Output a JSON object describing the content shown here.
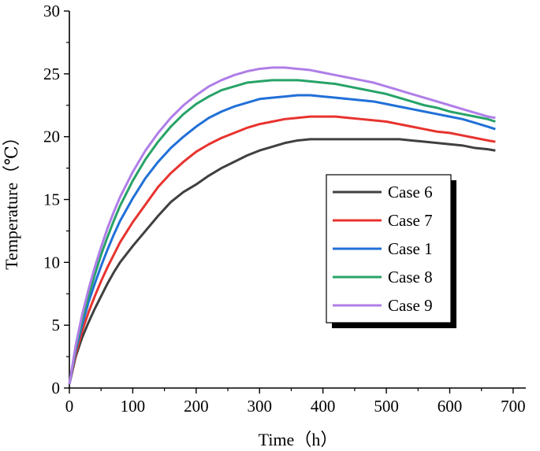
{
  "chart_data": {
    "type": "line",
    "title": "",
    "xlabel": "Time（h）",
    "ylabel": "Temperature（℃）",
    "xlim": [
      0,
      720
    ],
    "ylim": [
      0,
      30
    ],
    "xticks": [
      0,
      100,
      200,
      300,
      400,
      500,
      600,
      700
    ],
    "yticks": [
      0,
      5,
      10,
      15,
      20,
      25,
      30
    ],
    "grid": false,
    "legend_position": "center-right",
    "series": [
      {
        "name": "Case 6",
        "color": "#404040",
        "x": [
          0,
          10,
          20,
          30,
          40,
          50,
          60,
          70,
          80,
          100,
          120,
          140,
          160,
          180,
          200,
          220,
          240,
          260,
          280,
          300,
          320,
          340,
          360,
          380,
          400,
          420,
          440,
          460,
          480,
          500,
          520,
          540,
          560,
          580,
          600,
          620,
          640,
          660,
          672
        ],
        "y": [
          0.3,
          2.5,
          4.0,
          5.2,
          6.3,
          7.3,
          8.3,
          9.2,
          10.0,
          11.3,
          12.5,
          13.7,
          14.8,
          15.6,
          16.2,
          16.9,
          17.5,
          18.0,
          18.5,
          18.9,
          19.2,
          19.5,
          19.7,
          19.8,
          19.8,
          19.8,
          19.8,
          19.8,
          19.8,
          19.8,
          19.8,
          19.7,
          19.6,
          19.5,
          19.4,
          19.3,
          19.1,
          19.0,
          18.9
        ]
      },
      {
        "name": "Case 7",
        "color": "#e8332f",
        "x": [
          0,
          10,
          20,
          30,
          40,
          50,
          60,
          70,
          80,
          100,
          120,
          140,
          160,
          180,
          200,
          220,
          240,
          260,
          280,
          300,
          320,
          340,
          360,
          380,
          400,
          420,
          440,
          460,
          480,
          500,
          520,
          540,
          560,
          580,
          600,
          620,
          640,
          660,
          672
        ],
        "y": [
          0.3,
          2.7,
          4.5,
          6.0,
          7.3,
          8.5,
          9.6,
          10.6,
          11.6,
          13.2,
          14.6,
          16.0,
          17.1,
          18.0,
          18.8,
          19.4,
          19.9,
          20.3,
          20.7,
          21.0,
          21.2,
          21.4,
          21.5,
          21.6,
          21.6,
          21.6,
          21.5,
          21.4,
          21.3,
          21.2,
          21.0,
          20.8,
          20.6,
          20.4,
          20.3,
          20.1,
          19.9,
          19.7,
          19.6
        ]
      },
      {
        "name": "Case 1",
        "color": "#2170d8",
        "x": [
          0,
          10,
          20,
          30,
          40,
          50,
          60,
          70,
          80,
          100,
          120,
          140,
          160,
          180,
          200,
          220,
          240,
          260,
          280,
          300,
          320,
          340,
          360,
          380,
          400,
          420,
          440,
          460,
          480,
          500,
          520,
          540,
          560,
          580,
          600,
          620,
          640,
          660,
          672
        ],
        "y": [
          0.3,
          3.0,
          5.0,
          6.8,
          8.3,
          9.7,
          11.0,
          12.2,
          13.3,
          15.1,
          16.7,
          18.0,
          19.1,
          20.0,
          20.8,
          21.5,
          22.0,
          22.4,
          22.7,
          23.0,
          23.1,
          23.2,
          23.3,
          23.3,
          23.2,
          23.1,
          23.0,
          22.9,
          22.8,
          22.6,
          22.4,
          22.2,
          22.0,
          21.8,
          21.6,
          21.4,
          21.1,
          20.8,
          20.6
        ]
      },
      {
        "name": "Case 8",
        "color": "#27a368",
        "x": [
          0,
          10,
          20,
          30,
          40,
          50,
          60,
          70,
          80,
          100,
          120,
          140,
          160,
          180,
          200,
          220,
          240,
          260,
          280,
          300,
          320,
          340,
          360,
          380,
          400,
          420,
          440,
          460,
          480,
          500,
          520,
          540,
          560,
          580,
          600,
          620,
          640,
          660,
          672
        ],
        "y": [
          0.3,
          3.2,
          5.4,
          7.3,
          9.0,
          10.6,
          12.0,
          13.3,
          14.5,
          16.5,
          18.2,
          19.6,
          20.8,
          21.8,
          22.6,
          23.2,
          23.7,
          24.0,
          24.3,
          24.4,
          24.5,
          24.5,
          24.5,
          24.4,
          24.3,
          24.2,
          24.0,
          23.8,
          23.6,
          23.4,
          23.1,
          22.8,
          22.5,
          22.3,
          22.0,
          21.8,
          21.6,
          21.4,
          21.2
        ]
      },
      {
        "name": "Case 9",
        "color": "#b07ee8",
        "x": [
          0,
          10,
          20,
          30,
          40,
          50,
          60,
          70,
          80,
          100,
          120,
          140,
          160,
          180,
          200,
          220,
          240,
          260,
          280,
          300,
          320,
          340,
          360,
          380,
          400,
          420,
          440,
          460,
          480,
          500,
          520,
          540,
          560,
          580,
          600,
          620,
          640,
          660,
          672
        ],
        "y": [
          0.3,
          3.4,
          5.8,
          7.8,
          9.6,
          11.2,
          12.7,
          14.0,
          15.2,
          17.2,
          18.9,
          20.3,
          21.5,
          22.5,
          23.3,
          24.0,
          24.5,
          24.9,
          25.2,
          25.4,
          25.5,
          25.5,
          25.4,
          25.3,
          25.1,
          24.9,
          24.7,
          24.5,
          24.3,
          24.0,
          23.7,
          23.4,
          23.1,
          22.8,
          22.5,
          22.2,
          21.9,
          21.6,
          21.5
        ]
      }
    ]
  }
}
